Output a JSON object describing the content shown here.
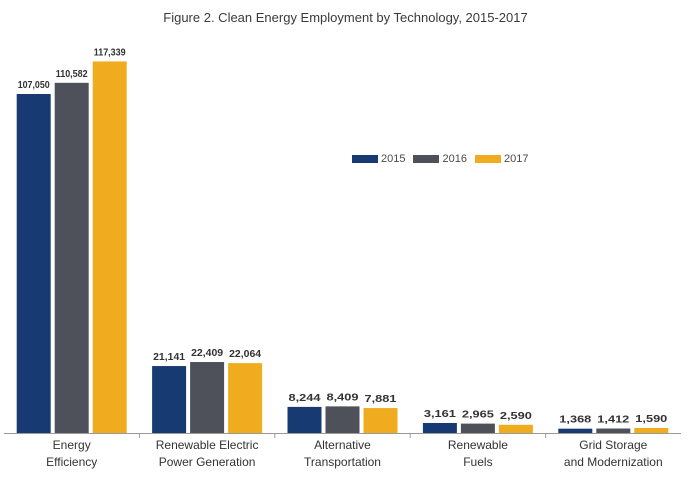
{
  "chart_data": {
    "type": "bar",
    "title": "Figure 2. Clean Energy Employment by Technology, 2015-2017",
    "categories": [
      [
        "Energy",
        "Efficiency"
      ],
      [
        "Renewable Electric",
        "Power Generation"
      ],
      [
        "Alternative",
        "Transportation"
      ],
      [
        "Renewable",
        "Fuels"
      ],
      [
        "Grid Storage",
        "and Modernization"
      ]
    ],
    "series": [
      {
        "name": "2015",
        "color": "#173a73",
        "values": [
          107050,
          21141,
          8244,
          3161,
          1368
        ],
        "labels": [
          "107,050",
          "21,141",
          "8,244",
          "3,161",
          "1,368"
        ]
      },
      {
        "name": "2016",
        "color": "#4e5159",
        "values": [
          110582,
          22409,
          8409,
          2965,
          1412
        ],
        "labels": [
          "110,582",
          "22,409",
          "8,409",
          "2,965",
          "1,412"
        ]
      },
      {
        "name": "2017",
        "color": "#efac1f",
        "values": [
          117339,
          22064,
          7881,
          2590,
          1590
        ],
        "labels": [
          "117,339",
          "22,064",
          "7,881",
          "2,590",
          "1,590"
        ]
      }
    ],
    "ylim": [
      0,
      120000
    ],
    "grid": false,
    "legend_position": "right-center"
  }
}
